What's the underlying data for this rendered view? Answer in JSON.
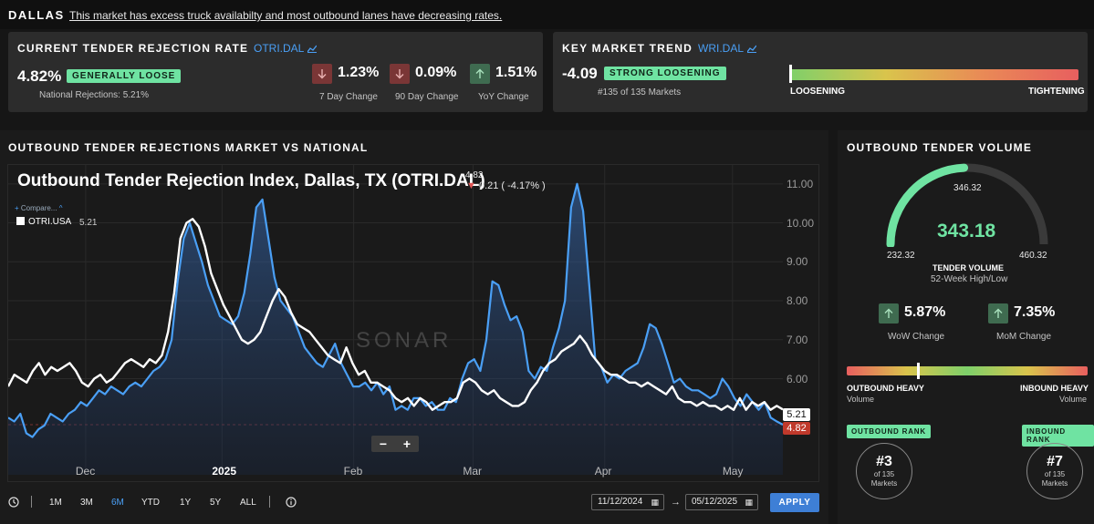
{
  "header": {
    "market": "DALLAS",
    "message": "This market has excess truck availabilty and most outbound lanes have decreasing rates."
  },
  "rejection_card": {
    "title": "CURRENT TENDER REJECTION RATE",
    "ticker": "OTRI.DAL",
    "value": "4.82%",
    "badge": "GENERALLY LOOSE",
    "national": "National Rejections: 5.21%",
    "changes": [
      {
        "value": "1.23%",
        "label": "7 Day Change",
        "direction": "down"
      },
      {
        "value": "0.09%",
        "label": "90 Day Change",
        "direction": "down"
      },
      {
        "value": "1.51%",
        "label": "YoY Change",
        "direction": "up"
      }
    ]
  },
  "trend_card": {
    "title": "KEY MARKET TREND",
    "ticker": "WRI.DAL",
    "value": "-4.09",
    "badge": "STRONG LOOSENING",
    "rank": "#135 of 135 Markets",
    "left_label": "LOOSENING",
    "right_label": "TIGHTENING",
    "level": 0.0
  },
  "chart_panel": {
    "section_title": "OUTBOUND TENDER REJECTIONS MARKET VS NATIONAL",
    "title": "Outbound Tender Rejection Index, Dallas, TX (OTRI.DAL)",
    "last_value": "4.82",
    "change": "0.21 ( -4.17% )",
    "compare_label": "Compare...",
    "series_label": "OTRI.USA",
    "series_value": "5.21",
    "watermark": "SONAR",
    "tag_usa": "5.21",
    "tag_dal": "4.82",
    "zoom_out": "−",
    "zoom_in": "+"
  },
  "chart_data": {
    "type": "line",
    "ylim": [
      4.0,
      11.3
    ],
    "yticks": [
      "11.00",
      "10.00",
      "9.00",
      "8.00",
      "7.00",
      "6.00"
    ],
    "xticks": [
      {
        "label": "Dec",
        "t": 0.1,
        "year": false
      },
      {
        "label": "2025",
        "t": 0.276,
        "year": true
      },
      {
        "label": "Feb",
        "t": 0.446,
        "year": false
      },
      {
        "label": "Mar",
        "t": 0.6,
        "year": false
      },
      {
        "label": "Apr",
        "t": 0.77,
        "year": false
      },
      {
        "label": "May",
        "t": 0.935,
        "year": false
      }
    ],
    "series": [
      {
        "name": "OTRI.DAL",
        "color": "#4a9ff5",
        "values": [
          5.0,
          4.9,
          5.1,
          4.6,
          4.5,
          4.7,
          4.8,
          5.1,
          5.0,
          4.9,
          5.1,
          5.2,
          5.4,
          5.3,
          5.5,
          5.7,
          5.6,
          5.8,
          5.7,
          5.6,
          5.8,
          5.9,
          5.8,
          6.0,
          6.2,
          6.3,
          6.5,
          7.0,
          8.5,
          9.6,
          10.0,
          9.5,
          9.0,
          8.4,
          8.0,
          7.6,
          7.5,
          7.4,
          7.6,
          8.2,
          9.2,
          10.4,
          10.6,
          9.6,
          8.6,
          8.0,
          7.8,
          7.6,
          7.2,
          6.8,
          6.6,
          6.4,
          6.3,
          6.6,
          6.9,
          6.4,
          6.1,
          5.8,
          5.8,
          5.9,
          5.7,
          5.9,
          5.6,
          5.8,
          5.2,
          5.3,
          5.2,
          5.5,
          5.5,
          5.3,
          5.4,
          5.2,
          5.2,
          5.5,
          5.4,
          6.0,
          6.4,
          6.5,
          6.2,
          7.0,
          8.5,
          8.4,
          7.9,
          7.5,
          7.6,
          7.2,
          6.2,
          6.0,
          6.3,
          6.2,
          6.8,
          7.3,
          8.0,
          10.4,
          11.0,
          10.3,
          8.4,
          6.5,
          6.3,
          5.9,
          6.1,
          6.0,
          6.2,
          6.3,
          6.4,
          6.8,
          7.4,
          7.3,
          6.9,
          6.4,
          5.9,
          6.0,
          5.8,
          5.7,
          5.7,
          5.6,
          5.5,
          5.6,
          6.0,
          5.8,
          5.5,
          5.3,
          5.6,
          5.4,
          5.2,
          5.4,
          5.0,
          4.9,
          4.82
        ]
      },
      {
        "name": "OTRI.USA",
        "color": "#ffffff",
        "values": [
          5.8,
          6.1,
          6.0,
          5.9,
          6.2,
          6.4,
          6.1,
          6.3,
          6.2,
          6.3,
          6.4,
          6.2,
          5.9,
          5.8,
          6.0,
          6.1,
          5.9,
          6.0,
          6.2,
          6.4,
          6.5,
          6.4,
          6.3,
          6.5,
          6.4,
          6.6,
          7.2,
          8.2,
          9.6,
          10.0,
          10.1,
          9.9,
          9.4,
          8.7,
          8.3,
          7.9,
          7.6,
          7.3,
          7.0,
          6.9,
          7.0,
          7.2,
          7.6,
          8.0,
          8.3,
          8.1,
          7.7,
          7.4,
          7.3,
          7.2,
          7.0,
          6.8,
          6.6,
          6.5,
          6.4,
          6.8,
          6.4,
          6.1,
          6.2,
          5.9,
          5.9,
          5.8,
          5.7,
          5.5,
          5.4,
          5.5,
          5.3,
          5.5,
          5.4,
          5.2,
          5.3,
          5.4,
          5.4,
          5.5,
          5.9,
          6.0,
          5.9,
          5.7,
          5.6,
          5.7,
          5.5,
          5.4,
          5.3,
          5.3,
          5.4,
          5.7,
          5.9,
          6.2,
          6.4,
          6.5,
          6.7,
          6.8,
          6.9,
          7.1,
          6.9,
          6.6,
          6.4,
          6.2,
          6.1,
          6.1,
          6.0,
          5.9,
          5.9,
          5.8,
          5.9,
          5.8,
          5.7,
          5.6,
          5.8,
          5.5,
          5.4,
          5.4,
          5.3,
          5.4,
          5.3,
          5.3,
          5.2,
          5.3,
          5.2,
          5.5,
          5.2,
          5.4,
          5.3,
          5.4,
          5.2,
          5.3,
          5.21
        ]
      }
    ]
  },
  "range": {
    "buttons": [
      "1M",
      "3M",
      "6M",
      "YTD",
      "1Y",
      "5Y",
      "ALL"
    ],
    "active": "6M",
    "start_date": "11/12/2024",
    "end_date": "05/12/2025",
    "arrow": "→",
    "apply": "APPLY"
  },
  "volume_panel": {
    "title": "OUTBOUND TENDER VOLUME",
    "value": "343.18",
    "marker_value": "346.32",
    "min": "232.32",
    "max": "460.32",
    "label": "TENDER VOLUME",
    "sublabel": "52-Week High/Low",
    "level": 0.487,
    "changes": [
      {
        "value": "5.87%",
        "label": "WoW Change",
        "direction": "up"
      },
      {
        "value": "7.35%",
        "label": "MoM Change",
        "direction": "up"
      }
    ],
    "io_left": "OUTBOUND HEAVY",
    "io_left_sub": "Volume",
    "io_right": "INBOUND HEAVY",
    "io_right_sub": "Volume",
    "io_level": 0.29,
    "outbound_rank_label": "OUTBOUND RANK",
    "outbound_rank": "#3",
    "inbound_rank_label": "INBOUND RANK",
    "inbound_rank": "#7",
    "of_markets": "of 135",
    "markets": "Markets"
  },
  "colors": {
    "accent_green": "#6fe3a2",
    "accent_blue": "#4a9ff5",
    "down_red": "#7a3636",
    "up_green": "#3f6b50"
  }
}
